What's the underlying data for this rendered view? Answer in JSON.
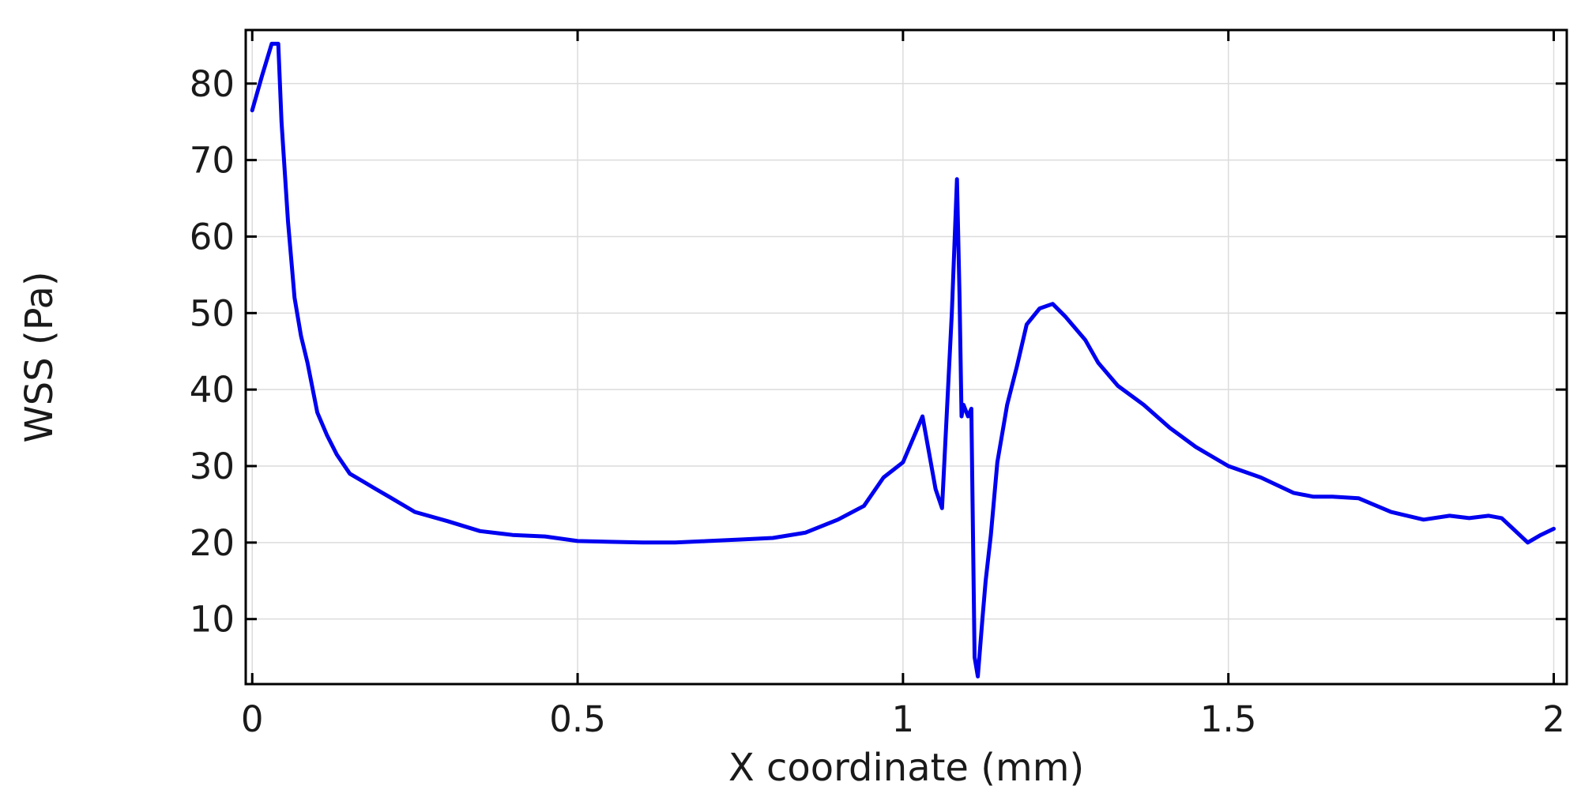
{
  "chart_data": {
    "type": "line",
    "xlabel": "X coordinate (mm)",
    "ylabel": "WSS (Pa)",
    "xlim": [
      -0.01,
      2.02
    ],
    "ylim": [
      1.5,
      87
    ],
    "xticks": [
      0,
      0.5,
      1,
      1.5,
      2
    ],
    "xtick_labels": [
      "0",
      "0.5",
      "1",
      "1.5",
      "2"
    ],
    "yticks": [
      10,
      20,
      30,
      40,
      50,
      60,
      70,
      80
    ],
    "ytick_labels": [
      "10",
      "20",
      "30",
      "40",
      "50",
      "60",
      "70",
      "80"
    ],
    "grid": true,
    "colors": {
      "series": "#0000f0",
      "grid": "#dcdcdc",
      "axis": "#000000"
    },
    "series": [
      {
        "x": [
          0,
          0.015,
          0.03,
          0.04,
          0.045,
          0.055,
          0.065,
          0.075,
          0.085,
          0.1,
          0.115,
          0.13,
          0.15,
          0.17,
          0.19,
          0.21,
          0.25,
          0.3,
          0.35,
          0.4,
          0.45,
          0.5,
          0.55,
          0.6,
          0.65,
          0.7,
          0.75,
          0.8,
          0.85,
          0.9,
          0.94,
          0.97,
          1.0,
          1.03,
          1.05,
          1.06,
          1.075,
          1.083,
          1.087,
          1.09,
          1.093,
          1.1,
          1.105,
          1.11,
          1.115,
          1.122,
          1.127,
          1.135,
          1.145,
          1.16,
          1.175,
          1.19,
          1.21,
          1.23,
          1.25,
          1.28,
          1.3,
          1.33,
          1.37,
          1.41,
          1.45,
          1.5,
          1.55,
          1.6,
          1.63,
          1.66,
          1.7,
          1.75,
          1.8,
          1.84,
          1.87,
          1.9,
          1.92,
          1.935,
          1.96,
          1.98,
          2.0
        ],
        "y": [
          76.5,
          81,
          85.2,
          85.2,
          75,
          62,
          52,
          47,
          43.5,
          37,
          34,
          31.5,
          29,
          28,
          27,
          26,
          24,
          22.8,
          21.5,
          21,
          20.8,
          20.2,
          20.1,
          20,
          20,
          20.2,
          20.4,
          20.6,
          21.3,
          23,
          24.8,
          28.5,
          30.5,
          36.5,
          27,
          24.5,
          50,
          67.5,
          52,
          36.5,
          38,
          36.5,
          37.5,
          5,
          2.5,
          10,
          15,
          21,
          30.5,
          38,
          43,
          48.5,
          50.6,
          51.2,
          49.5,
          46.5,
          43.5,
          40.5,
          38,
          35,
          32.5,
          30,
          28.5,
          26.5,
          26,
          26,
          25.8,
          24,
          23,
          23.5,
          23.2,
          23.5,
          23.2,
          22,
          20,
          21,
          21.8
        ]
      }
    ]
  }
}
